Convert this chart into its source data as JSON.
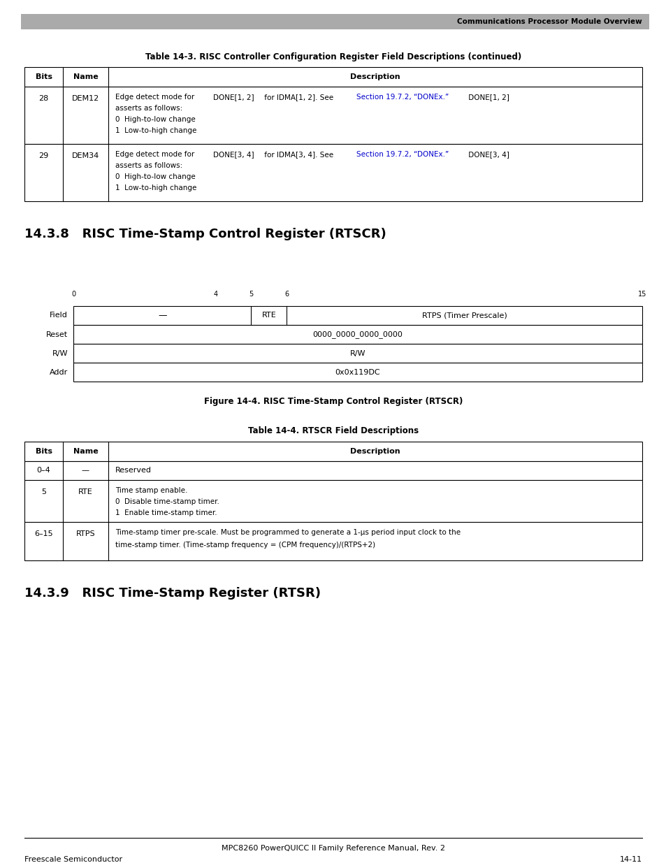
{
  "page_width": 9.54,
  "page_height": 12.35,
  "bg_color": "#ffffff",
  "header_text": "Communications Processor Module Overview",
  "table1_title": "Table 14-3. RISC Controller Configuration Register Field Descriptions (continued)",
  "section838_title": "14.3.8   RISC Time-Stamp Control Register (RTSCR)",
  "register_reset_value": "0000_0000_0000_0000",
  "register_rw_value": "R/W",
  "register_addr_value": "0x0x119DC",
  "figure_caption": "Figure 14-4. RISC Time-Stamp Control Register (RTSCR)",
  "table2_title": "Table 14-4. RTSCR Field Descriptions",
  "section839_title": "14.3.9   RISC Time-Stamp Register (RTSR)",
  "footer_text": "MPC8260 PowerQUICC II Family Reference Manual, Rev. 2",
  "footer_left": "Freescale Semiconductor",
  "footer_right": "14-11",
  "blue_color": "#0000cc",
  "text_color": "#000000",
  "header_stripe_color": "#aaaaaa"
}
